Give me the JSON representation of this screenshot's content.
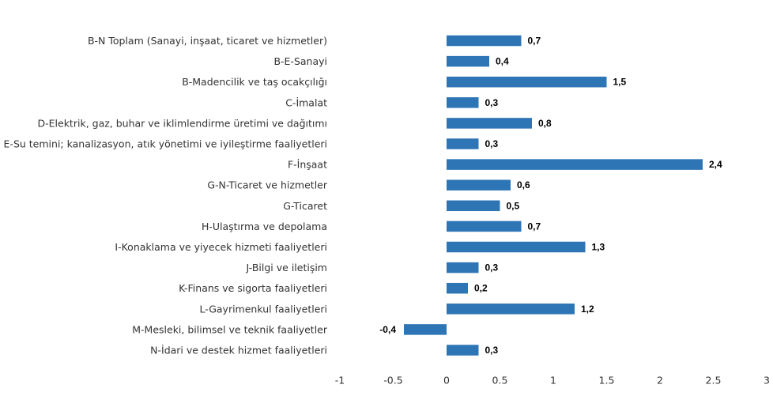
{
  "chart_data": {
    "type": "bar",
    "orientation": "horizontal",
    "title": "",
    "xlabel": "",
    "ylabel": "",
    "categories": [
      "B-N Toplam (Sanayi, inşaat, ticaret ve hizmetler)",
      "B-E-Sanayi",
      "B-Madencilik ve taş ocakçılığı",
      "C-İmalat",
      "D-Elektrik, gaz, buhar ve iklimlendirme üretimi ve dağıtımı",
      "E-Su temini; kanalizasyon, atık yönetimi ve iyileştirme faaliyetleri",
      "F-İnşaat",
      "G-N-Ticaret ve hizmetler",
      "G-Ticaret",
      "H-Ulaştırma ve depolama",
      "I-Konaklama ve yiyecek hizmeti faaliyetleri",
      "J-Bilgi ve iletişim",
      "K-Finans ve sigorta faaliyetleri",
      "L-Gayrimenkul faaliyetleri",
      "M-Mesleki, bilimsel ve teknik faaliyetler",
      "N-İdari ve destek hizmet faaliyetleri"
    ],
    "values": [
      0.7,
      0.4,
      1.5,
      0.3,
      0.8,
      0.3,
      2.4,
      0.6,
      0.5,
      0.7,
      1.3,
      0.3,
      0.2,
      1.2,
      -0.4,
      0.3
    ],
    "value_labels": [
      "0,7",
      "0,4",
      "1,5",
      "0,3",
      "0,8",
      "0,3",
      "2,4",
      "0,6",
      "0,5",
      "0,7",
      "1,3",
      "0,3",
      "0,2",
      "1,2",
      "-0,4",
      "0,3"
    ],
    "xlim": [
      -1,
      3
    ],
    "x_ticks": [
      -1,
      -0.5,
      0,
      0.5,
      1,
      1.5,
      2,
      2.5,
      3
    ],
    "x_tick_labels": [
      "-1",
      "-0.5",
      "0",
      "0.5",
      "1",
      "1.5",
      "2",
      "2.5",
      "3"
    ],
    "bar_color": "#2E75B6",
    "grid": false,
    "legend": "none"
  }
}
